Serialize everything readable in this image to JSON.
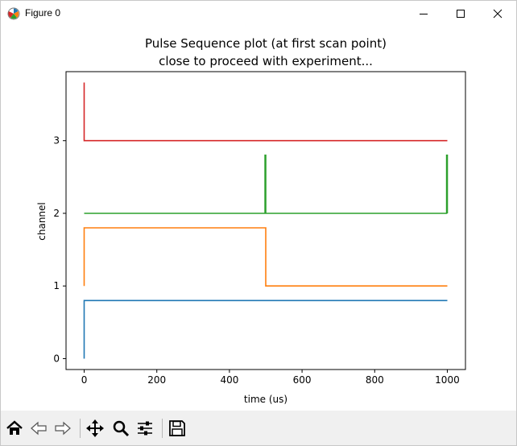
{
  "window": {
    "title": "Figure 0"
  },
  "toolbar": {
    "buttons": [
      {
        "name": "home",
        "icon": "home-icon"
      },
      {
        "name": "back",
        "icon": "back-arrow-icon"
      },
      {
        "name": "forward",
        "icon": "forward-arrow-icon"
      },
      {
        "name": "pan",
        "icon": "move-arrows-icon"
      },
      {
        "name": "zoom",
        "icon": "magnifier-icon"
      },
      {
        "name": "configure-subplots",
        "icon": "sliders-icon"
      },
      {
        "name": "save",
        "icon": "floppy-disk-icon"
      }
    ]
  },
  "chart_data": {
    "type": "line",
    "title_line1": "Pulse Sequence plot (at first scan point)",
    "title_line2": "close to proceed with experiment...",
    "xlabel": "time (us)",
    "ylabel": "channel",
    "xlim": [
      -50,
      1050
    ],
    "ylim": [
      -0.15,
      3.95
    ],
    "xticks": [
      0,
      200,
      400,
      600,
      800,
      1000
    ],
    "yticks": [
      0,
      1,
      2,
      3
    ],
    "grid": false,
    "series": [
      {
        "color": "#1f77b4",
        "x": [
          0,
          0,
          1000
        ],
        "y": [
          0,
          0.8,
          0.8
        ]
      },
      {
        "color": "#ff7f0e",
        "x": [
          0,
          0,
          500,
          500,
          1000
        ],
        "y": [
          1,
          1.8,
          1.8,
          1,
          1
        ]
      },
      {
        "color": "#2ca02c",
        "x": [
          0,
          498,
          498,
          500,
          500,
          998,
          998,
          1000,
          1000
        ],
        "y": [
          2,
          2,
          2.8,
          2.8,
          2,
          2,
          2.8,
          2.8,
          2
        ]
      },
      {
        "color": "#d62728",
        "x": [
          0,
          0,
          1000
        ],
        "y": [
          3.8,
          3,
          3
        ]
      }
    ]
  }
}
